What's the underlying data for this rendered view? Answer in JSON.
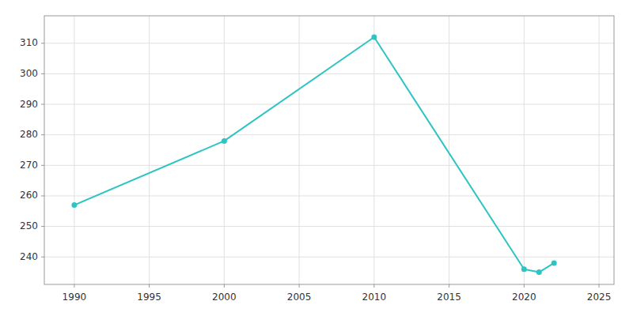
{
  "chart_data": {
    "type": "line",
    "x": [
      1990,
      2000,
      2010,
      2020,
      2021,
      2022
    ],
    "values": [
      257,
      278,
      312,
      236,
      235,
      238
    ],
    "color": "#2ec4c4",
    "marker": "circle",
    "xlim": [
      1988,
      2026
    ],
    "ylim": [
      231,
      319
    ],
    "xticks": [
      1990,
      1995,
      2000,
      2005,
      2010,
      2015,
      2020,
      2025
    ],
    "yticks": [
      240,
      250,
      260,
      270,
      280,
      290,
      300,
      310
    ],
    "grid": true
  }
}
